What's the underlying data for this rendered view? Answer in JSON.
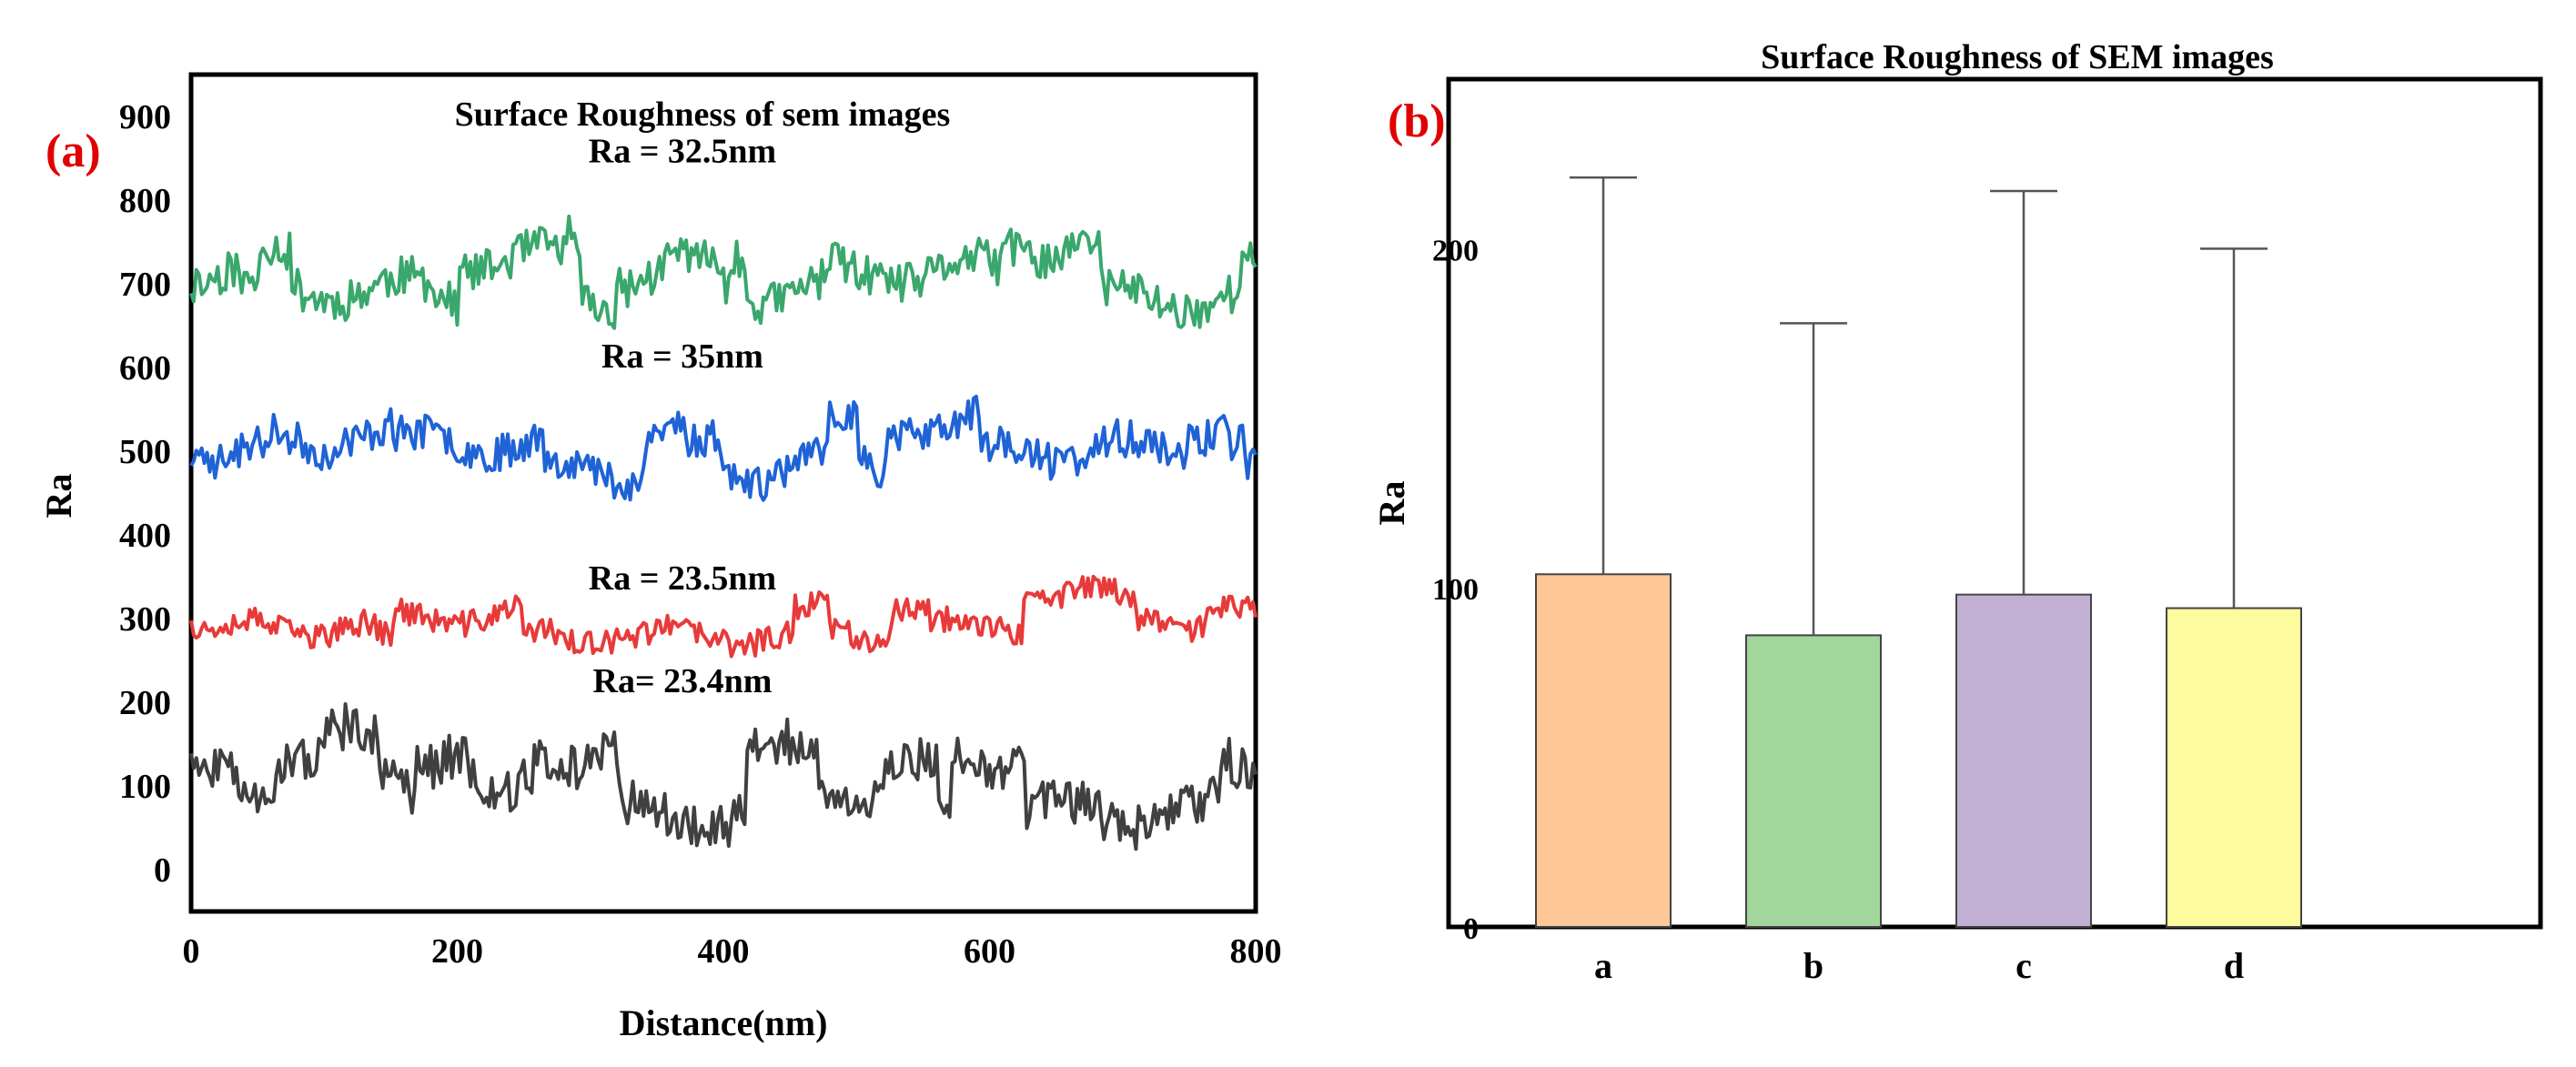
{
  "chart_data": [
    {
      "panel_label": "(a)",
      "type": "line",
      "title": "Surface Roughness of sem images",
      "xlabel": "Distance(nm)",
      "ylabel": "Ra",
      "xlim": [
        0,
        800
      ],
      "ylim": [
        -50,
        950
      ],
      "xticks": [
        "0",
        "200",
        "400",
        "600",
        "800"
      ],
      "yticks": [
        "0",
        "100",
        "200",
        "300",
        "400",
        "500",
        "600",
        "700",
        "800",
        "900"
      ],
      "series": [
        {
          "name": "Ra = 32.5nm",
          "color": "#3aa76d",
          "base": 715,
          "amp": 62,
          "seed": 11,
          "x": 400,
          "y": 845
        },
        {
          "name": "Ra = 35nm",
          "color": "#1f63d6",
          "base": 500,
          "amp": 55,
          "seed": 23,
          "x": 400,
          "y": 600
        },
        {
          "name": "Ra = 23.5nm",
          "color": "#e83a3a",
          "base": 300,
          "amp": 40,
          "seed": 37,
          "x": 400,
          "y": 335
        },
        {
          "name": "Ra= 23.4nm",
          "color": "#404040",
          "base": 105,
          "amp": 70,
          "seed": 51,
          "x": 400,
          "y": 212
        }
      ]
    },
    {
      "panel_label": "(b)",
      "type": "bar",
      "title": "Surface Roughness of SEM images",
      "xlabel": "",
      "ylabel": "Ra",
      "ylim": [
        0,
        250
      ],
      "yticks": [
        "0",
        "100",
        "200"
      ],
      "categories": [
        "a",
        "b",
        "c",
        "d"
      ],
      "values": [
        104,
        86,
        98,
        94
      ],
      "errors": [
        117,
        92,
        119,
        106
      ],
      "colors": [
        "#fdc797",
        "#a1d69d",
        "#c2b0d4",
        "#fdfb9d"
      ]
    }
  ]
}
